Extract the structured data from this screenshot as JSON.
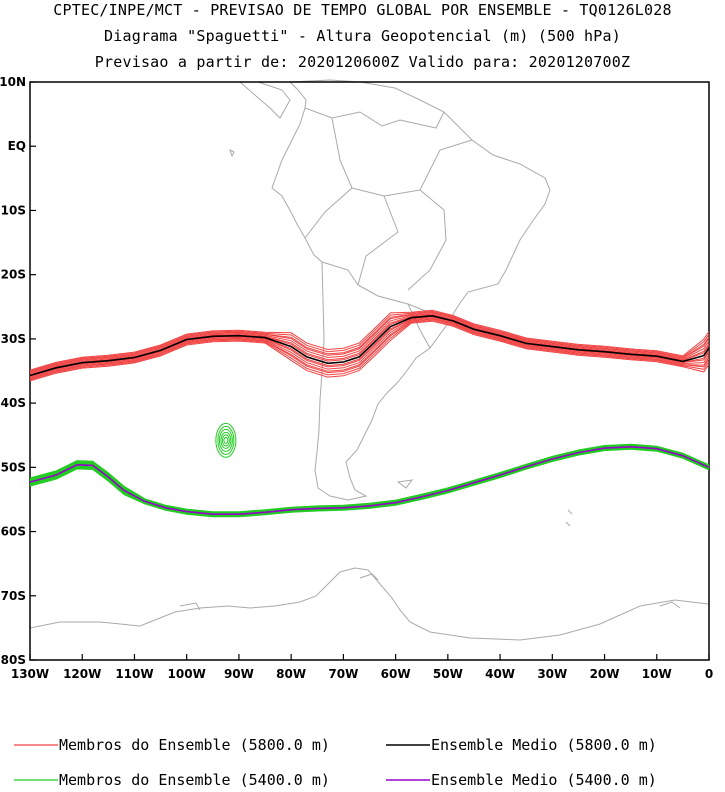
{
  "title": {
    "line1": "CPTEC/INPE/MCT - PREVISAO DE TEMPO GLOBAL POR ENSEMBLE - TQ0126L028",
    "line2": "Diagrama \"Spaguetti\" - Altura Geopotencial (m) (500 hPa)",
    "line3": "Previsao a partir de: 2020120600Z  Valido para: 2020120700Z"
  },
  "colors": {
    "member_5800": "#f04444",
    "mean_5800": "#000000",
    "member_5400": "#22cc22",
    "mean_5400": "#9900cc",
    "coast": "#aaaaaa"
  },
  "chart_data": {
    "type": "line",
    "title": "Diagrama \"Spaguetti\" - Altura Geopotencial (m) (500 hPa)",
    "x_range": [
      -130,
      0
    ],
    "y_range": [
      -80,
      10
    ],
    "x_ticks": [
      {
        "value": -130,
        "label": "130W"
      },
      {
        "value": -120,
        "label": "120W"
      },
      {
        "value": -110,
        "label": "110W"
      },
      {
        "value": -100,
        "label": "100W"
      },
      {
        "value": -90,
        "label": "90W"
      },
      {
        "value": -80,
        "label": "80W"
      },
      {
        "value": -70,
        "label": "70W"
      },
      {
        "value": -60,
        "label": "60W"
      },
      {
        "value": -50,
        "label": "50W"
      },
      {
        "value": -40,
        "label": "40W"
      },
      {
        "value": -30,
        "label": "30W"
      },
      {
        "value": -20,
        "label": "20W"
      },
      {
        "value": -10,
        "label": "10W"
      },
      {
        "value": 0,
        "label": "0"
      }
    ],
    "y_ticks": [
      {
        "value": 10,
        "label": "10N"
      },
      {
        "value": 0,
        "label": "EQ"
      },
      {
        "value": -10,
        "label": "10S"
      },
      {
        "value": -20,
        "label": "20S"
      },
      {
        "value": -30,
        "label": "30S"
      },
      {
        "value": -40,
        "label": "40S"
      },
      {
        "value": -50,
        "label": "50S"
      },
      {
        "value": -60,
        "label": "60S"
      },
      {
        "value": -70,
        "label": "70S"
      },
      {
        "value": -80,
        "label": "80S"
      }
    ],
    "series": [
      {
        "name": "Ensemble Medio (5800.0 m)",
        "kind": "mean",
        "level": 5800,
        "points": [
          [
            -130,
            -35.7
          ],
          [
            -125,
            -34.5
          ],
          [
            -120,
            -33.7
          ],
          [
            -115,
            -33.4
          ],
          [
            -110,
            -32.9
          ],
          [
            -105,
            -31.8
          ],
          [
            -100,
            -30.1
          ],
          [
            -95,
            -29.6
          ],
          [
            -90,
            -29.5
          ],
          [
            -85,
            -29.8
          ],
          [
            -80,
            -31.2
          ],
          [
            -77,
            -32.8
          ],
          [
            -73,
            -33.8
          ],
          [
            -70,
            -33.6
          ],
          [
            -67,
            -32.8
          ],
          [
            -64,
            -30.5
          ],
          [
            -61,
            -28.1
          ],
          [
            -57,
            -26.7
          ],
          [
            -53,
            -26.4
          ],
          [
            -49,
            -27.2
          ],
          [
            -45,
            -28.5
          ],
          [
            -40,
            -29.5
          ],
          [
            -35,
            -30.7
          ],
          [
            -30,
            -31.2
          ],
          [
            -25,
            -31.7
          ],
          [
            -20,
            -32.0
          ],
          [
            -15,
            -32.4
          ],
          [
            -10,
            -32.7
          ],
          [
            -5,
            -33.5
          ],
          [
            -1,
            -32.6
          ],
          [
            0,
            -31.4
          ]
        ]
      },
      {
        "name": "Ensemble Medio (5400.0 m)",
        "kind": "mean",
        "level": 5400,
        "points": [
          [
            -130,
            -52.3
          ],
          [
            -125,
            -51.2
          ],
          [
            -121,
            -49.6
          ],
          [
            -118,
            -49.7
          ],
          [
            -115,
            -51.5
          ],
          [
            -112,
            -53.6
          ],
          [
            -108,
            -55.3
          ],
          [
            -104,
            -56.3
          ],
          [
            -100,
            -56.9
          ],
          [
            -95,
            -57.3
          ],
          [
            -90,
            -57.3
          ],
          [
            -85,
            -57.0
          ],
          [
            -80,
            -56.6
          ],
          [
            -75,
            -56.4
          ],
          [
            -70,
            -56.3
          ],
          [
            -65,
            -56.0
          ],
          [
            -60,
            -55.5
          ],
          [
            -55,
            -54.6
          ],
          [
            -50,
            -53.6
          ],
          [
            -45,
            -52.4
          ],
          [
            -40,
            -51.2
          ],
          [
            -35,
            -49.9
          ],
          [
            -30,
            -48.7
          ],
          [
            -25,
            -47.7
          ],
          [
            -20,
            -47.0
          ],
          [
            -15,
            -46.8
          ],
          [
            -10,
            -47.1
          ],
          [
            -5,
            -48.2
          ],
          [
            0,
            -50.0
          ]
        ]
      }
    ],
    "member_count": {
      "5800": 15,
      "5400": 15
    },
    "closed_contour_5400": {
      "center_lon": -92.5,
      "center_lat": -45.8
    },
    "legend": {
      "member_5800": "Membros do Ensemble (5800.0 m)",
      "mean_5800": "Ensemble Medio (5800.0 m)",
      "member_5400": "Membros do Ensemble (5400.0 m)",
      "mean_5400": "Ensemble Medio (5400.0 m)"
    }
  }
}
